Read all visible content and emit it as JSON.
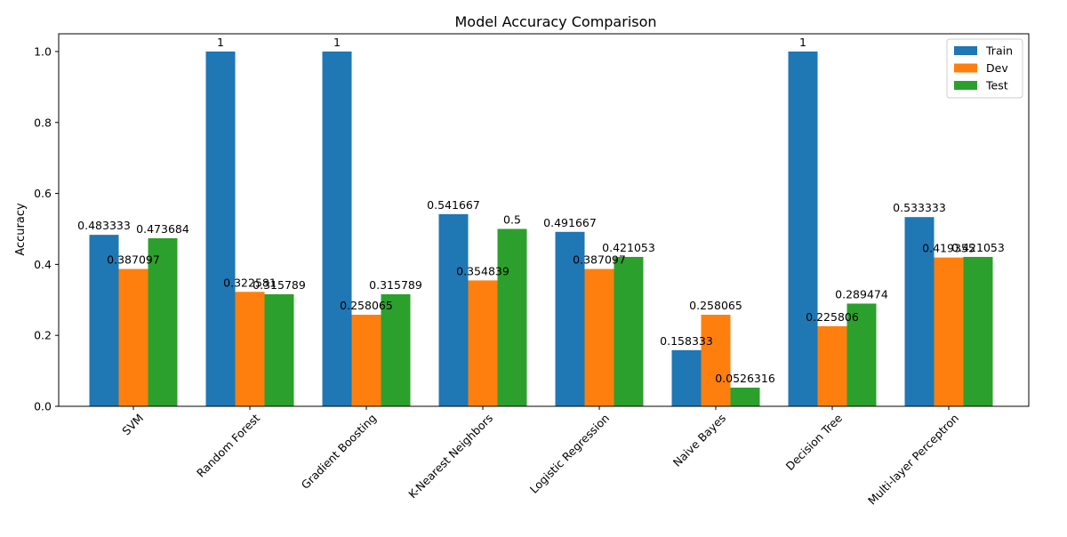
{
  "chart_data": {
    "type": "bar",
    "title": "Model Accuracy Comparison",
    "xlabel": "",
    "ylabel": "Accuracy",
    "ylim": [
      0,
      1.05
    ],
    "yticks": [
      "0.0",
      "0.2",
      "0.4",
      "0.6",
      "0.8",
      "1.0"
    ],
    "ytick_values": [
      0,
      0.2,
      0.4,
      0.6,
      0.8,
      1.0
    ],
    "categories": [
      "SVM",
      "Random Forest",
      "Gradient Boosting",
      "K-Nearest Neighbors",
      "Logistic Regression",
      "Naive Bayes",
      "Decision Tree",
      "Multi-layer Perceptron"
    ],
    "series": [
      {
        "name": "Train",
        "color": "#1f77b4",
        "values": [
          0.483333,
          1,
          1,
          0.541667,
          0.491667,
          0.158333,
          1,
          0.533333
        ],
        "labels": [
          "0.483333",
          "1",
          "1",
          "0.541667",
          "0.491667",
          "0.158333",
          "1",
          "0.533333"
        ]
      },
      {
        "name": "Dev",
        "color": "#ff7f0e",
        "values": [
          0.387097,
          0.322581,
          0.258065,
          0.354839,
          0.387097,
          0.258065,
          0.225806,
          0.419355
        ],
        "labels": [
          "0.387097",
          "0.322581",
          "0.258065",
          "0.354839",
          "0.387097",
          "0.258065",
          "0.225806",
          "0.419355"
        ]
      },
      {
        "name": "Test",
        "color": "#2ca02c",
        "values": [
          0.473684,
          0.315789,
          0.315789,
          0.5,
          0.421053,
          0.0526316,
          0.289474,
          0.421053
        ],
        "labels": [
          "0.473684",
          "0.315789",
          "0.315789",
          "0.5",
          "0.421053",
          "0.0526316",
          "0.289474",
          "0.421053"
        ]
      }
    ],
    "legend_position": "top-right",
    "grid": false
  }
}
